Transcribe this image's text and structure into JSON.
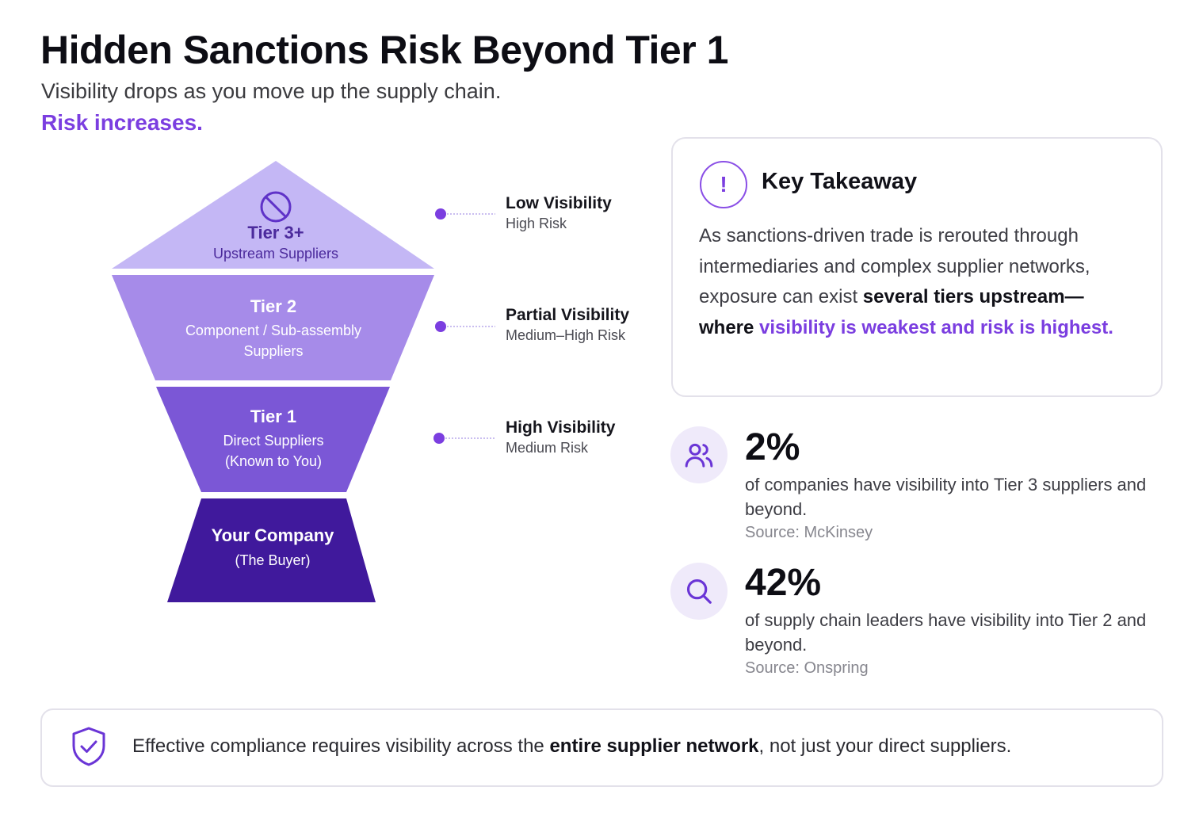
{
  "header": {
    "title": "Hidden Sanctions Risk Beyond Tier 1",
    "subtitle": "Visibility drops as you move up the supply chain.",
    "subtitle_accent": "Risk increases."
  },
  "funnel": {
    "tiers": [
      {
        "name": "Tier 3+",
        "desc_lines": [
          "Upstream Suppliers"
        ],
        "color": "#c4b7f5",
        "text_color": "#4b2a9c"
      },
      {
        "name": "Tier 2",
        "desc_lines": [
          "Component / Sub-assembly",
          "Suppliers"
        ],
        "color": "#a68be9",
        "text_color": "#ffffff"
      },
      {
        "name": "Tier 1",
        "desc_lines": [
          "Direct Suppliers",
          "(Known to You)"
        ],
        "color": "#7b57d6",
        "text_color": "#ffffff"
      },
      {
        "name": "Your Company",
        "desc_lines": [
          "(The Buyer)"
        ],
        "color": "#40199c",
        "text_color": "#ffffff"
      }
    ],
    "top_icon": "prohibited-icon",
    "dot_color": "#7b3ee0"
  },
  "visibility_labels": [
    {
      "title": "Low Visibility",
      "risk": "High Risk"
    },
    {
      "title": "Partial Visibility",
      "risk": "Medium–High Risk"
    },
    {
      "title": "High Visibility",
      "risk": "Medium Risk"
    }
  ],
  "takeaway": {
    "icon": "exclamation-icon",
    "title": "Key Takeaway",
    "text_plain": "As sanctions-driven trade is rerouted through intermediaries and complex supplier networks, exposure can exist ",
    "text_bold": "several tiers upstream— where ",
    "text_accent": "visibility is weakest and risk is highest",
    "text_end": "."
  },
  "stats": [
    {
      "icon": "users-icon",
      "value": "2%",
      "description": "of companies have visibility into Tier 3 suppliers and beyond.",
      "source": "Source: McKinsey"
    },
    {
      "icon": "search-icon",
      "value": "42%",
      "description": "of supply chain leaders have visibility into Tier 2 and beyond.",
      "source": "Source: Onspring"
    }
  ],
  "banner": {
    "icon": "shield-check-icon",
    "text_before": "Effective compliance requires visibility across the ",
    "text_bold": "entire supplier network",
    "text_after": ", not just your direct suppliers."
  },
  "colors": {
    "accent": "#7b3ee0",
    "icon_bg": "#efeafa",
    "border": "#e3e1ea"
  }
}
